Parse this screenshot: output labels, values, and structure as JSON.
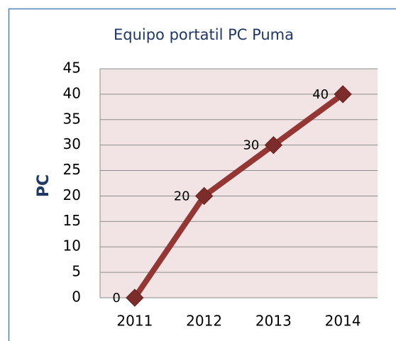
{
  "chart_data": {
    "type": "line",
    "title": "Equipo portatil PC Puma",
    "y_label": "PC",
    "categories": [
      "2011",
      "2012",
      "2013",
      "2014"
    ],
    "series": [
      {
        "name": "PC",
        "color": "#943634",
        "values": [
          0,
          20,
          30,
          40
        ]
      }
    ],
    "ylim": [
      0,
      45
    ],
    "yticks": [
      0,
      5,
      10,
      15,
      20,
      25,
      30,
      35,
      40,
      45
    ],
    "grid": true,
    "data_labels": true
  }
}
